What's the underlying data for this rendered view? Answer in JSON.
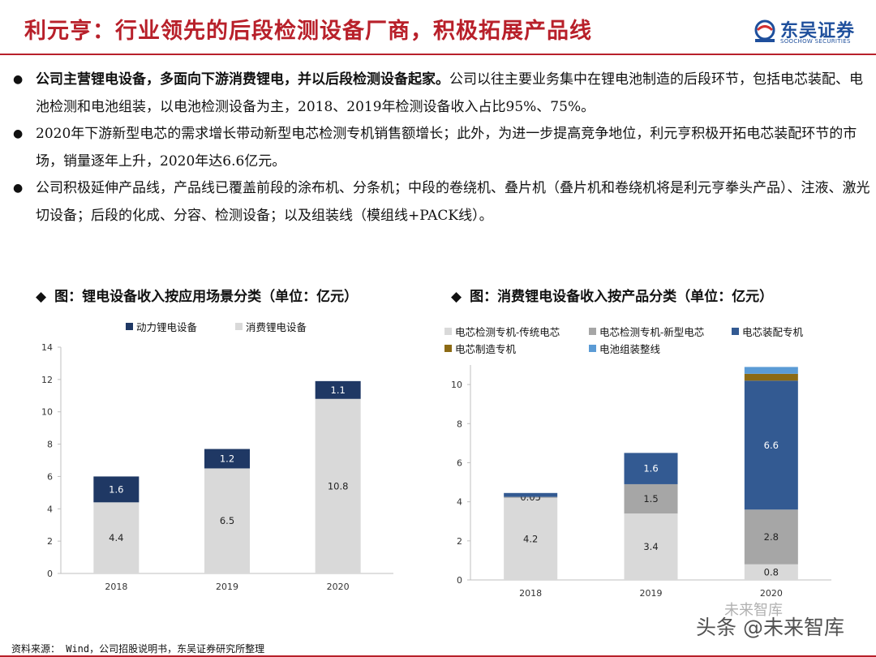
{
  "header": {
    "title": "利元亨：行业领先的后段检测设备厂商，积极拓展产品线",
    "logo_cn": "东吴证券",
    "logo_en": "SOOCHOW SECURITIES"
  },
  "bullets": [
    {
      "bold": "公司主营锂电设备，多面向下游消费锂电，并以后段检测设备起家。",
      "text": "公司以往主要业务集中在锂电池制造的后段环节，包括电芯装配、电池检测和电池组装，以电池检测设备为主，2018、2019年检测设备收入占比95%、75%。"
    },
    {
      "bold": "",
      "text": "2020年下游新型电芯的需求增长带动新型电芯检测专机销售额增长；此外，为进一步提高竞争地位，利元亨积极开拓电芯装配环节的市场，销量逐年上升，2020年达6.6亿元。"
    },
    {
      "bold": "",
      "text": "公司积极延伸产品线，产品线已覆盖前段的涂布机、分条机；中段的卷绕机、叠片机（叠片机和卷绕机将是利元亨拳头产品）、注液、激光切设备；后段的化成、分容、检测设备；以及组装线（模组线+PACK线）。"
    }
  ],
  "chart_titles": {
    "chart1": "图：锂电设备收入按应用场景分类（单位：亿元）",
    "chart2": "图：消费锂电设备收入按产品分类（单位：亿元）",
    "marker": "◆"
  },
  "colors": {
    "title_red": "#b8202a",
    "navy": "#1f3864",
    "light_gray": "#d9d9d9",
    "mid_gray": "#a6a6a6",
    "blue": "#335a92",
    "gold": "#8c6a14",
    "light_blue": "#5b9bd5"
  },
  "chart_data": [
    {
      "type": "bar",
      "stacked": true,
      "categories": [
        "2018",
        "2019",
        "2020"
      ],
      "series": [
        {
          "name": "消费锂电设备",
          "values": [
            4.4,
            6.5,
            10.8
          ],
          "color": "#d9d9d9",
          "labels": [
            "4.4",
            "6.5",
            "10.8"
          ]
        },
        {
          "name": "动力锂电设备",
          "values": [
            1.6,
            1.2,
            1.1
          ],
          "color": "#1f3864",
          "labels": [
            "1.6",
            "1.2",
            "1.1"
          ]
        }
      ],
      "legend_order": [
        1,
        0
      ],
      "ylim": [
        0,
        14
      ],
      "yticks": [
        0,
        2,
        4,
        6,
        8,
        10,
        12,
        14
      ],
      "grid": false,
      "legend": "top"
    },
    {
      "type": "bar",
      "stacked": true,
      "categories": [
        "2018",
        "2019",
        "2020"
      ],
      "series": [
        {
          "name": "电芯检测专机-传统电芯",
          "values": [
            4.2,
            3.4,
            0.8
          ],
          "color": "#d9d9d9",
          "labels": [
            "4.2",
            "3.4",
            "0.8"
          ]
        },
        {
          "name": "电芯检测专机-新型电芯",
          "values": [
            0.05,
            1.5,
            2.8
          ],
          "color": "#a6a6a6",
          "labels": [
            "0.05",
            "1.5",
            "2.8"
          ]
        },
        {
          "name": "电芯装配专机",
          "values": [
            0.2,
            1.6,
            6.6
          ],
          "color": "#335a92",
          "labels": [
            "",
            "1.6",
            "6.6"
          ]
        },
        {
          "name": "电芯制造专机",
          "values": [
            0,
            0,
            0.35
          ],
          "color": "#8c6a14",
          "labels": [
            "",
            "",
            ""
          ]
        },
        {
          "name": "电池组装整线",
          "values": [
            0,
            0,
            0.35
          ],
          "color": "#5b9bd5",
          "labels": [
            "",
            "",
            ""
          ]
        }
      ],
      "ylim": [
        0,
        11
      ],
      "yticks": [
        0,
        2,
        4,
        6,
        8,
        10
      ],
      "grid": false,
      "legend": "top"
    }
  ],
  "footer": {
    "source": "资料来源： Wind，公司招股说明书，东吴证券研究所整理",
    "watermark": "头条 @未来智库",
    "watermark_small": "未来智库"
  }
}
